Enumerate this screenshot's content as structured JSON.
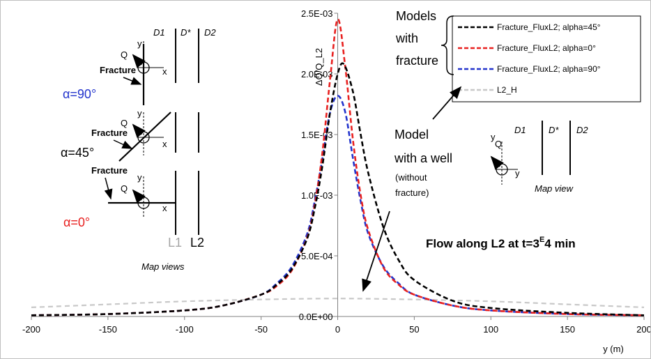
{
  "chart_data": {
    "type": "line",
    "title": "",
    "xlabel": "y (m)",
    "ylabel": "ΔQ/Q_L2",
    "xlim": [
      -200,
      200
    ],
    "ylim": [
      0,
      0.0025
    ],
    "x_ticks": [
      "-200",
      "-150",
      "-100",
      "-50",
      "0",
      "50",
      "100",
      "150",
      "200"
    ],
    "y_ticks": [
      "0.0E+00",
      "5.0E-04",
      "1.0E-03",
      "1.5E-03",
      "2.0E-03",
      "2.5E-03"
    ],
    "legend_position": "top-right",
    "series": [
      {
        "name": "Fracture_FluxL2; alpha=45°",
        "color": "#000000",
        "x": [
          -200,
          -150,
          -100,
          -75,
          -50,
          -40,
          -30,
          -20,
          -15,
          -10,
          -5,
          0,
          4,
          10,
          15,
          20,
          30,
          40,
          50,
          75,
          100,
          150,
          200
        ],
        "y": [
          1e-05,
          2e-05,
          5e-05,
          9e-05,
          0.00018,
          0.00026,
          0.00039,
          0.00064,
          0.00089,
          0.00124,
          0.00168,
          0.002,
          0.00208,
          0.00185,
          0.0015,
          0.00118,
          0.00073,
          0.00046,
          0.0003,
          0.00013,
          7e-05,
          3e-05,
          1e-05
        ]
      },
      {
        "name": "Fracture_FluxL2; alpha=0°",
        "color": "#e8201f",
        "x": [
          -200,
          -150,
          -100,
          -75,
          -50,
          -40,
          -30,
          -20,
          -15,
          -10,
          -5,
          0,
          5,
          10,
          15,
          20,
          30,
          40,
          50,
          75,
          100,
          150,
          200
        ],
        "y": [
          1e-05,
          2e-05,
          5e-05,
          9e-05,
          0.00018,
          0.00025,
          0.00038,
          0.00065,
          0.00092,
          0.00135,
          0.00195,
          0.00245,
          0.00205,
          0.00145,
          0.001,
          0.00071,
          0.0004,
          0.00026,
          0.00018,
          9e-05,
          5e-05,
          2e-05,
          1e-05
        ]
      },
      {
        "name": "Fracture_FluxL2; alpha=90°",
        "color": "#2233cc",
        "x": [
          -200,
          -150,
          -100,
          -75,
          -50,
          -40,
          -30,
          -20,
          -15,
          -10,
          -5,
          0,
          5,
          10,
          15,
          20,
          30,
          40,
          50,
          75,
          100,
          150,
          200
        ],
        "y": [
          1e-05,
          2e-05,
          5e-05,
          9e-05,
          0.00018,
          0.00027,
          0.00041,
          0.00068,
          0.00095,
          0.0013,
          0.00168,
          0.00182,
          0.00168,
          0.0013,
          0.00095,
          0.00068,
          0.00041,
          0.00027,
          0.00018,
          9e-05,
          5e-05,
          2e-05,
          1e-05
        ]
      },
      {
        "name": "L2_H",
        "color": "#c8c8c8",
        "x": [
          -200,
          -150,
          -100,
          -50,
          0,
          50,
          100,
          150,
          200
        ],
        "y": [
          7.5e-05,
          0.0001,
          0.000125,
          0.00014,
          0.000148,
          0.00014,
          0.000125,
          0.0001,
          7.5e-05
        ]
      }
    ]
  },
  "annotations": {
    "models_with_fracture": [
      "Models",
      "with",
      "fracture"
    ],
    "model_with_well": [
      "Model",
      "with a well"
    ],
    "without_fracture": [
      "(without",
      "fracture)"
    ],
    "flow_label_main": "Flow along L2 at t=3",
    "flow_label_sup": "E",
    "flow_label_end": "4 min",
    "map_view": "Map view",
    "map_views": "Map views",
    "d1": "D1",
    "dstar": "D*",
    "d2": "D2",
    "q": "Q",
    "fracture": "Fracture",
    "axis_y": "y",
    "axis_x": "x",
    "alpha_90": "α=90°",
    "alpha_45": "α=45°",
    "alpha_0": "α=0°",
    "l1": "L1",
    "l2": "L2"
  },
  "colors": {
    "alpha90": "#2233cc",
    "alpha45": "#000000",
    "alpha0": "#e8201f",
    "l1": "#a6a6a6"
  }
}
